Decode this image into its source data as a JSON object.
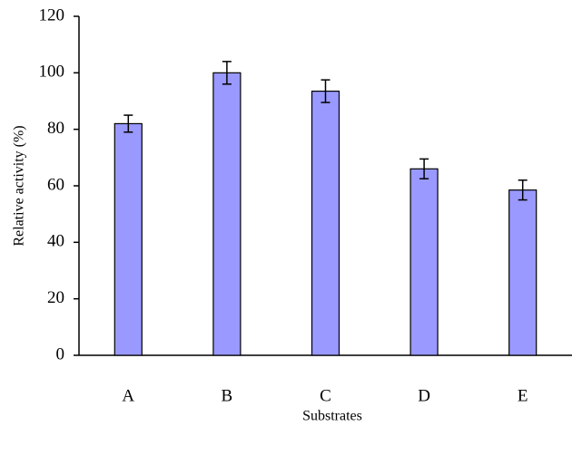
{
  "chart_data": {
    "type": "bar",
    "x_label": "Substrates",
    "y_label": "Relative activity (%)",
    "categories": [
      "A",
      "B",
      "C",
      "D",
      "E"
    ],
    "values": [
      82,
      100,
      93.5,
      66,
      58.5
    ],
    "errors": [
      3,
      4,
      4,
      3.5,
      3.5
    ],
    "color": "#9999ff",
    "ylim": [
      0,
      120
    ],
    "yticks": [
      0,
      20,
      40,
      60,
      80,
      100,
      120
    ],
    "grid": false
  }
}
